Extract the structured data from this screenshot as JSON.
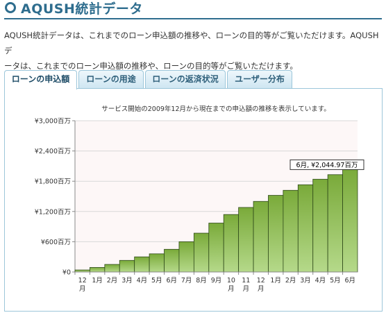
{
  "header": {
    "title": "AQUSH統計データ"
  },
  "intro": {
    "line1": "AQUSH統計データは、これまでのローン申込額の推移や、ローンの目的等がご覧いただけます。AQUSHデ",
    "line2": "ータは、これまでのローン申込額の推移や、ローンの目的等がご覧いただけます。"
  },
  "tabs": [
    {
      "label": "ローンの申込額",
      "active": true
    },
    {
      "label": "ローンの用途",
      "active": false
    },
    {
      "label": "ローンの返済状況",
      "active": false
    },
    {
      "label": "ユーザー分布",
      "active": false
    }
  ],
  "colors": {
    "accent": "#2e6d8e",
    "bar_top": "#7aaa3a",
    "bar_bottom": "#b5d98a"
  },
  "chart_data": {
    "type": "bar",
    "title": "サービス開始の2009年12月から現在までの申込額の推移を表示しています。",
    "categories": [
      [
        "12",
        "月"
      ],
      [
        "1月"
      ],
      [
        "2月"
      ],
      [
        "3月"
      ],
      [
        "4月"
      ],
      [
        "5月"
      ],
      [
        "6月"
      ],
      [
        "7月"
      ],
      [
        "8月"
      ],
      [
        "9月"
      ],
      [
        "10",
        "月"
      ],
      [
        "11",
        "月"
      ],
      [
        "12",
        "月"
      ],
      [
        "1月"
      ],
      [
        "2月"
      ],
      [
        "3月"
      ],
      [
        "4月"
      ],
      [
        "5月"
      ],
      [
        "6月"
      ]
    ],
    "values": [
      40,
      90,
      150,
      230,
      300,
      360,
      450,
      600,
      770,
      970,
      1140,
      1280,
      1400,
      1520,
      1620,
      1730,
      1840,
      1930,
      2044.97
    ],
    "yticks": [
      "¥0",
      "¥600百万",
      "¥1,200百万",
      "¥1,800百万",
      "¥2,400百万",
      "¥3,000百万"
    ],
    "ylim": [
      0,
      3000
    ],
    "grid": true,
    "tooltip": {
      "text": "6月, ¥2,044.97百万"
    }
  }
}
